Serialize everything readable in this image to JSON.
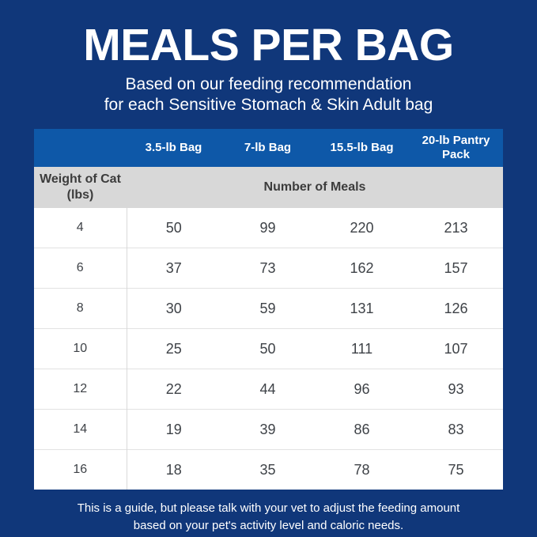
{
  "title": "MEALS PER BAG",
  "subtitle_line1": "Based on our feeding recommendation",
  "subtitle_line2": "for each Sensitive Stomach & Skin Adult bag",
  "table": {
    "columns": [
      "",
      "3.5-lb Bag",
      "7-lb Bag",
      "15.5-lb Bag",
      "20-lb Pantry Pack"
    ],
    "weight_label_line1": "Weight of Cat",
    "weight_label_line2": "(lbs)",
    "meals_label": "Number of Meals",
    "rows": [
      {
        "weight": "4",
        "values": [
          "50",
          "99",
          "220",
          "213"
        ]
      },
      {
        "weight": "6",
        "values": [
          "37",
          "73",
          "162",
          "157"
        ]
      },
      {
        "weight": "8",
        "values": [
          "30",
          "59",
          "131",
          "126"
        ]
      },
      {
        "weight": "10",
        "values": [
          "25",
          "50",
          "111",
          "107"
        ]
      },
      {
        "weight": "12",
        "values": [
          "22",
          "44",
          "96",
          "93"
        ]
      },
      {
        "weight": "14",
        "values": [
          "19",
          "39",
          "86",
          "83"
        ]
      },
      {
        "weight": "16",
        "values": [
          "18",
          "35",
          "78",
          "75"
        ]
      }
    ]
  },
  "footer_line1": "This is a guide, but please talk with your vet to adjust the feeding amount",
  "footer_line2": "based on your pet's activity level and caloric needs.",
  "colors": {
    "background_navy": "#10377a",
    "header_blue": "#0e58a8",
    "subheader_gray": "#d8d8d8",
    "row_white": "#ffffff",
    "text_white": "#ffffff",
    "text_dark": "#3c3c3c",
    "divider_gray": "#e2e2e2"
  },
  "chart_data": {
    "type": "table",
    "title": "MEALS PER BAG",
    "subtitle": "Based on our feeding recommendation for each Sensitive Stomach & Skin Adult bag",
    "columns": [
      "Weight of Cat (lbs)",
      "3.5-lb Bag",
      "7-lb Bag",
      "15.5-lb Bag",
      "20-lb Pantry Pack"
    ],
    "value_unit": "Number of Meals",
    "rows": [
      [
        4,
        50,
        99,
        220,
        213
      ],
      [
        6,
        37,
        73,
        162,
        157
      ],
      [
        8,
        30,
        59,
        131,
        126
      ],
      [
        10,
        25,
        50,
        111,
        107
      ],
      [
        12,
        22,
        44,
        96,
        93
      ],
      [
        14,
        19,
        39,
        86,
        83
      ],
      [
        16,
        18,
        35,
        78,
        75
      ]
    ],
    "note": "This is a guide, but please talk with your vet to adjust the feeding amount based on your pet's activity level and caloric needs."
  }
}
